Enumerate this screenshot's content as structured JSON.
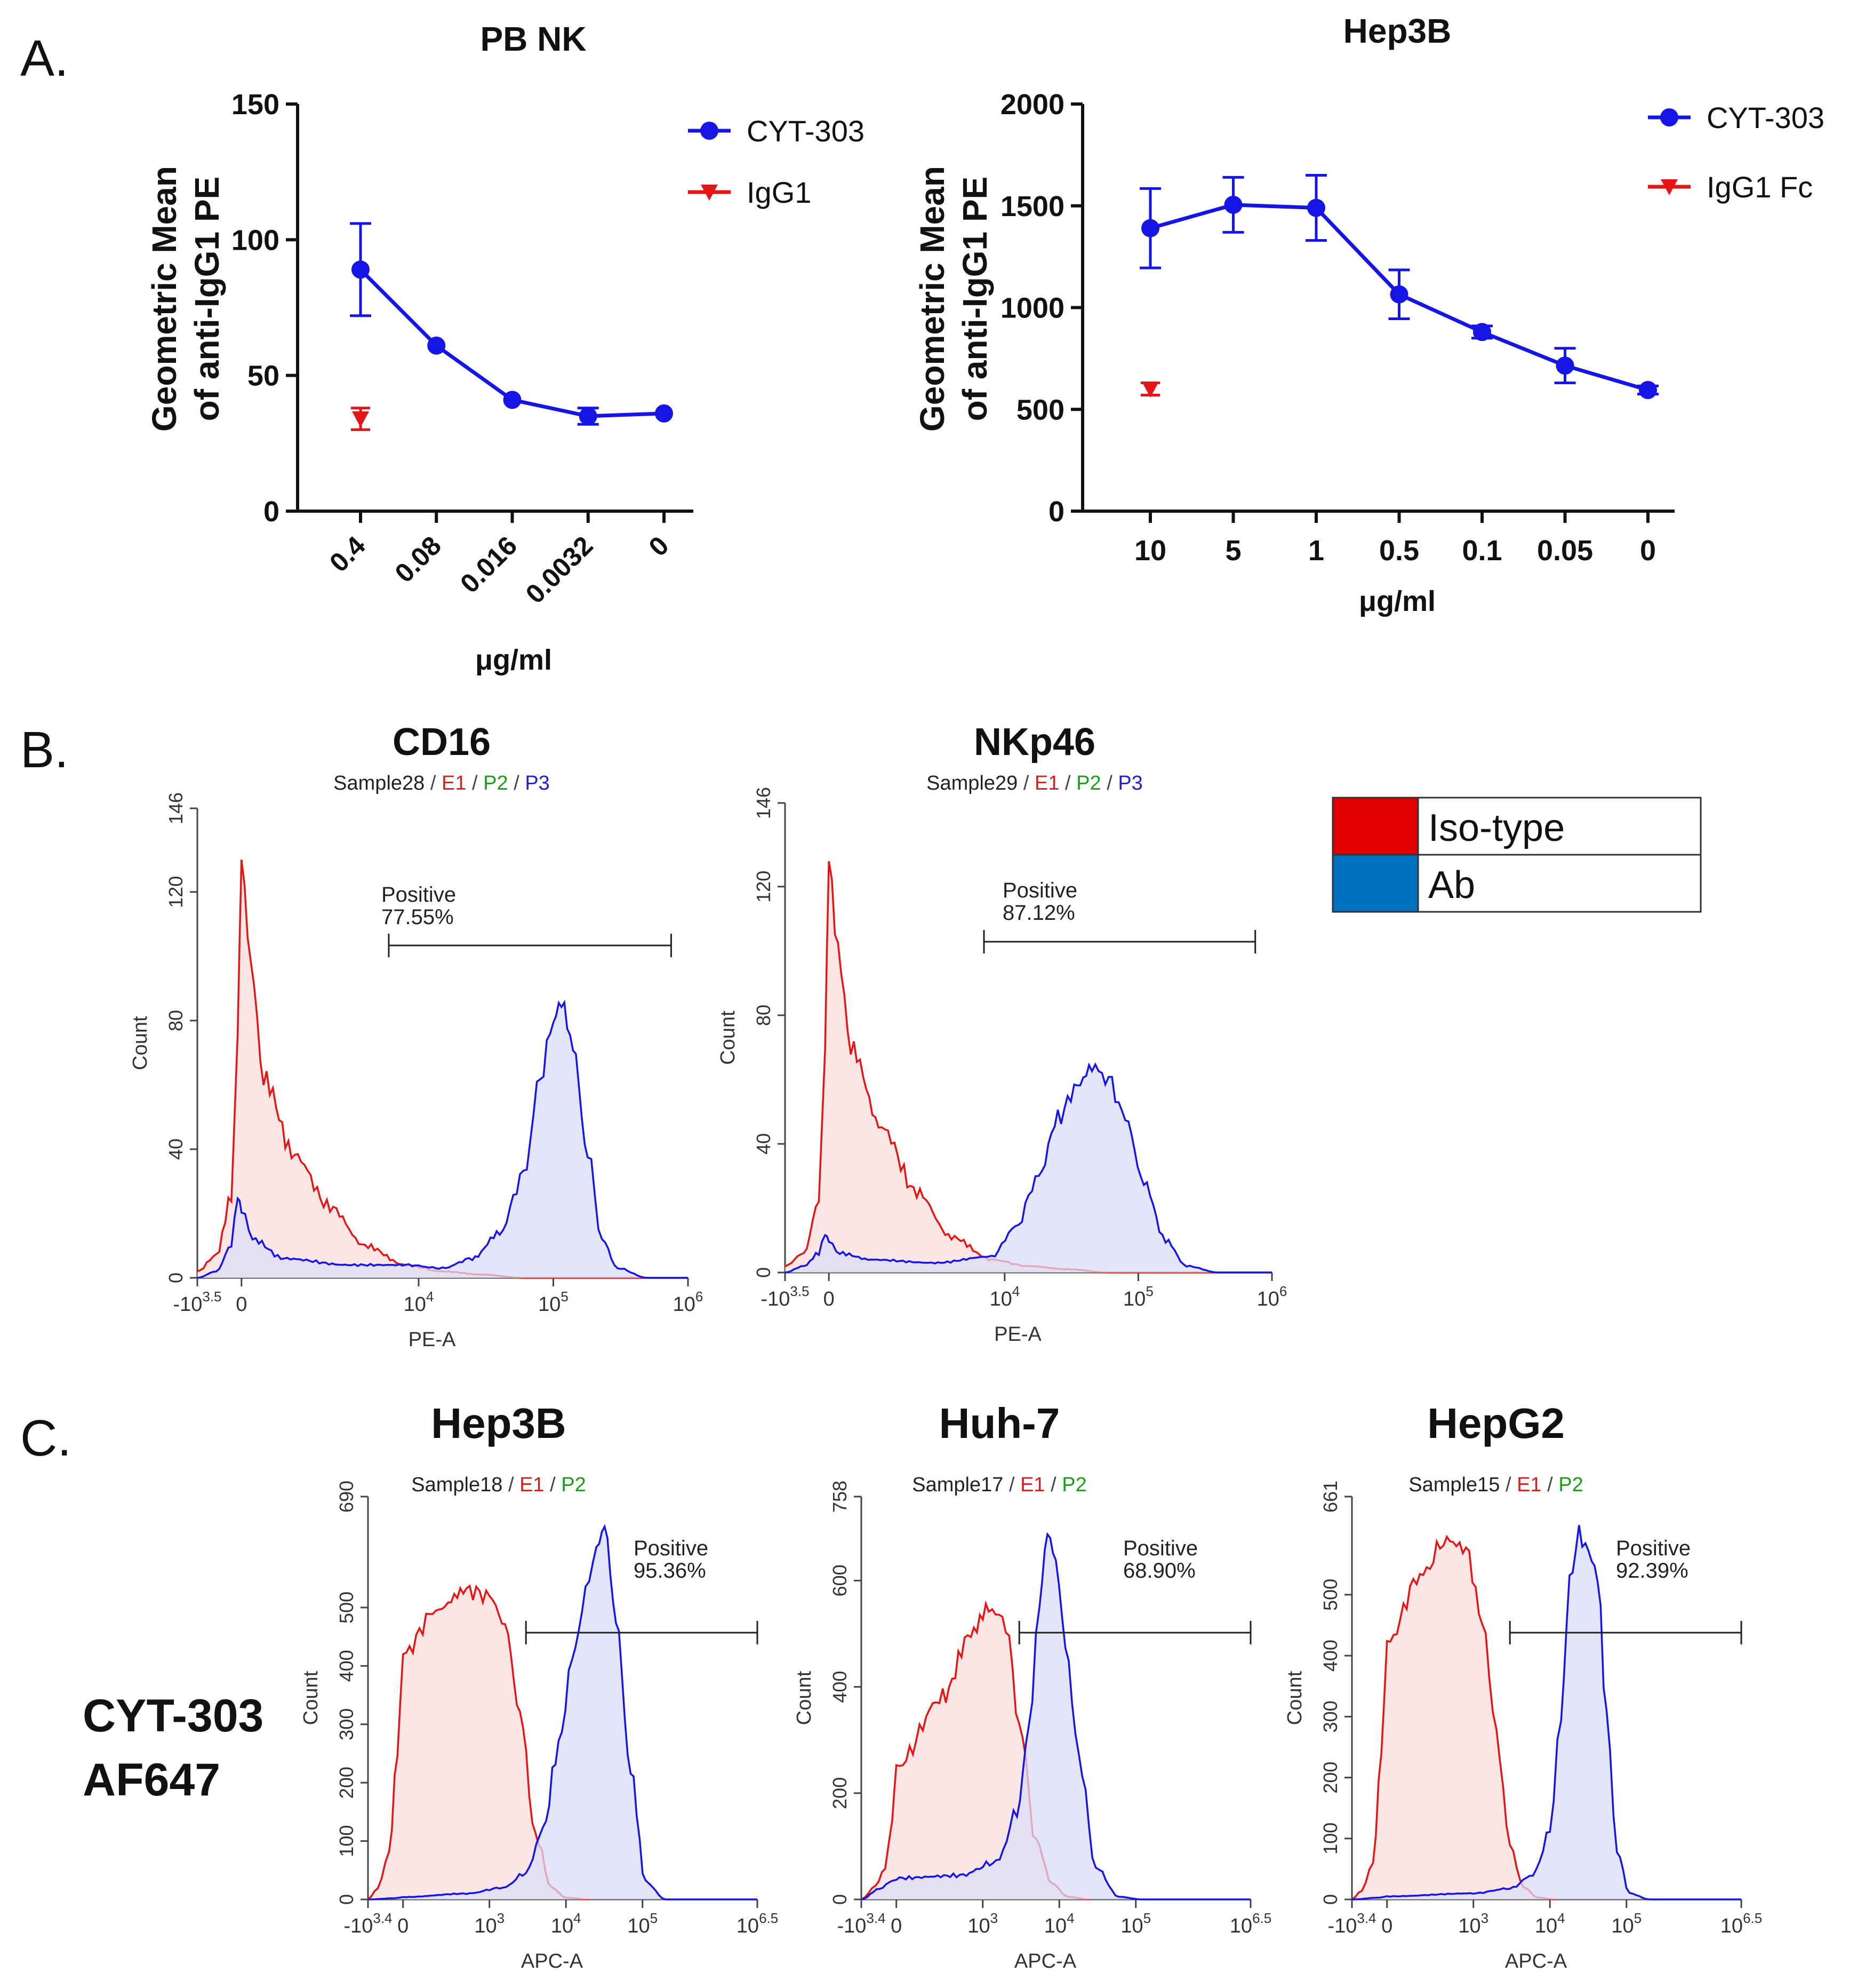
{
  "panels": {
    "a": "A.",
    "b": "B.",
    "c": "C."
  },
  "colors": {
    "cyt303": "#1515e6",
    "igg1": "#e61515",
    "iso_fill": "#f9dede",
    "ab_fill": "#dcdcf7",
    "legend_red": "#e00000",
    "legend_blue": "#0070c0"
  },
  "legend_b": {
    "iso": "Iso-type",
    "ab": "Ab"
  },
  "row_c_label": {
    "line1": "CYT-303",
    "line2": "AF647"
  },
  "chart_data": [
    {
      "id": "pbnk",
      "type": "line",
      "title": "PB NK",
      "ylabel": [
        "Geometric Mean",
        "of anti-IgG1 PE"
      ],
      "xlabel": "μg/ml",
      "ylim": [
        0,
        150
      ],
      "yticks": [
        0,
        50,
        100,
        150
      ],
      "categories": [
        "0.4",
        "0.08",
        "0.016",
        "0.0032",
        "0"
      ],
      "series": [
        {
          "name": "CYT-303",
          "marker": "circle",
          "values": [
            89,
            61,
            41,
            35,
            36
          ],
          "errors": [
            17,
            0,
            0,
            3,
            0
          ]
        },
        {
          "name": "IgG1",
          "marker": "triangle-down",
          "points": [
            {
              "index": 0,
              "value": 34,
              "error": 4
            }
          ]
        }
      ]
    },
    {
      "id": "hep3b_bind",
      "type": "line",
      "title": "Hep3B",
      "ylabel": [
        "Geometric Mean",
        "of anti-IgG1 PE"
      ],
      "xlabel": "μg/ml",
      "ylim": [
        0,
        2000
      ],
      "yticks": [
        0,
        500,
        1000,
        1500,
        2000
      ],
      "categories": [
        "10",
        "5",
        "1",
        "0.5",
        "0.1",
        "0.05",
        "0"
      ],
      "series": [
        {
          "name": "CYT-303",
          "marker": "circle",
          "values": [
            1390,
            1505,
            1490,
            1065,
            880,
            715,
            595
          ],
          "errors": [
            195,
            135,
            160,
            120,
            30,
            85,
            20
          ]
        },
        {
          "name": "IgG1 Fc",
          "marker": "triangle-down",
          "points": [
            {
              "index": 0,
              "value": 600,
              "error": 30
            }
          ]
        }
      ]
    },
    {
      "id": "cd16",
      "type": "area",
      "title": "CD16",
      "subtitle": {
        "sample": "Sample28",
        "sep": " / ",
        "e1": "E1",
        "p2": "P2",
        "p3": "P3"
      },
      "xlabel": "PE-A",
      "ylabel": "Count",
      "ylim": [
        0,
        146
      ],
      "yticks": [
        "0",
        "40",
        "80",
        "120",
        "146"
      ],
      "yticks_values": [
        0,
        40,
        80,
        120,
        146
      ],
      "xticks": [
        {
          "base": "-10",
          "exp": "3.5",
          "pos": -3500
        },
        {
          "base": "0",
          "exp": "",
          "pos": 0
        },
        {
          "base": "10",
          "exp": "4",
          "pos": 10000
        },
        {
          "base": "10",
          "exp": "5",
          "pos": 100000
        },
        {
          "base": "10",
          "exp": "6",
          "pos": 1000000
        }
      ],
      "gate": {
        "label": "Positive",
        "value": "77.55%",
        "from": 6000,
        "to": 750000
      },
      "series": [
        {
          "name": "Iso-type",
          "color": "red",
          "x": [
            -3500,
            -2000,
            -800,
            -300,
            0,
            250,
            600,
            1200,
            2200,
            4000,
            8000,
            15000,
            30000,
            60000,
            120000,
            250000,
            500000,
            1000000
          ],
          "y": [
            2,
            7,
            25,
            75,
            130,
            98,
            62,
            38,
            22,
            10,
            4,
            2,
            1,
            0,
            0,
            0,
            0,
            0
          ]
        },
        {
          "name": "Ab",
          "color": "blue",
          "x": [
            -3500,
            -2000,
            -800,
            -300,
            0,
            300,
            1000,
            3000,
            8000,
            15000,
            25000,
            40000,
            60000,
            80000,
            100000,
            115000,
            140000,
            180000,
            230000,
            300000,
            500000,
            1000000
          ],
          "y": [
            0,
            2,
            10,
            26,
            22,
            12,
            6,
            4,
            4,
            3,
            6,
            14,
            32,
            62,
            80,
            86,
            72,
            38,
            12,
            3,
            0,
            0
          ]
        }
      ]
    },
    {
      "id": "nkp46",
      "type": "area",
      "title": "NKp46",
      "subtitle": {
        "sample": "Sample29",
        "sep": " / ",
        "e1": "E1",
        "p2": "P2",
        "p3": "P3"
      },
      "xlabel": "PE-A",
      "ylabel": "Count",
      "ylim": [
        0,
        146
      ],
      "yticks": [
        "0",
        "40",
        "80",
        "120",
        "146"
      ],
      "yticks_values": [
        0,
        40,
        80,
        120,
        146
      ],
      "xticks": [
        {
          "base": "-10",
          "exp": "3.5",
          "pos": -3500
        },
        {
          "base": "0",
          "exp": "",
          "pos": 0
        },
        {
          "base": "10",
          "exp": "4",
          "pos": 10000
        },
        {
          "base": "10",
          "exp": "5",
          "pos": 100000
        },
        {
          "base": "10",
          "exp": "6",
          "pos": 1000000
        }
      ],
      "gate": {
        "label": "Positive",
        "value": "87.12%",
        "from": 7000,
        "to": 750000
      },
      "series": [
        {
          "name": "Iso-type",
          "color": "red",
          "x": [
            -3500,
            -2000,
            -800,
            -300,
            0,
            250,
            600,
            1200,
            2200,
            4000,
            8000,
            15000,
            30000,
            60000,
            120000,
            250000,
            500000,
            1000000
          ],
          "y": [
            2,
            6,
            22,
            70,
            128,
            100,
            70,
            45,
            25,
            11,
            4,
            2,
            1,
            0,
            0,
            0,
            0,
            0
          ]
        },
        {
          "name": "Ab",
          "color": "blue",
          "x": [
            -3500,
            -2000,
            -800,
            -300,
            0,
            300,
            1000,
            3000,
            8000,
            12000,
            18000,
            25000,
            35000,
            45000,
            60000,
            80000,
            110000,
            160000,
            230000,
            400000,
            1000000
          ],
          "y": [
            0,
            2,
            6,
            12,
            10,
            6,
            4,
            3,
            5,
            14,
            30,
            48,
            58,
            64,
            60,
            48,
            28,
            10,
            2,
            0,
            0
          ]
        }
      ]
    },
    {
      "id": "hep3b_flow",
      "type": "area",
      "title": "Hep3B",
      "subtitle": {
        "sample": "Sample18",
        "sep": " / ",
        "e1": "E1",
        "p2": "P2"
      },
      "xlabel": "APC-A",
      "ylabel": "Count",
      "ylim": [
        0,
        690
      ],
      "yticks": [
        "0",
        "100",
        "200",
        "300",
        "400",
        "500",
        "690"
      ],
      "yticks_values": [
        0,
        100,
        200,
        300,
        400,
        500,
        690
      ],
      "xticks": [
        {
          "base": "-10",
          "exp": "3.4",
          "pos": -2512
        },
        {
          "base": "0",
          "exp": "",
          "pos": 0
        },
        {
          "base": "10",
          "exp": "3",
          "pos": 1000
        },
        {
          "base": "10",
          "exp": "4",
          "pos": 10000
        },
        {
          "base": "10",
          "exp": "5",
          "pos": 100000
        },
        {
          "base": "10",
          "exp": "6.5",
          "pos": 3162278
        }
      ],
      "gate": {
        "label": "Positive",
        "value": "95.36%",
        "from": 3000,
        "to": 3162278
      },
      "series": [
        {
          "name": "Iso-type",
          "color": "red",
          "x": [
            -2512,
            -1800,
            -1000,
            -400,
            0,
            200,
            500,
            1000,
            1600,
            2500,
            4000,
            6500,
            10000,
            20000
          ],
          "y": [
            0,
            20,
            80,
            250,
            420,
            495,
            530,
            520,
            470,
            320,
            110,
            20,
            3,
            0
          ]
        },
        {
          "name": "Ab",
          "color": "blue",
          "x": [
            -2512,
            -600,
            0,
            500,
            1500,
            3000,
            5000,
            8000,
            12000,
            18000,
            25000,
            32000,
            45000,
            70000,
            110000,
            200000,
            3162278
          ],
          "y": [
            0,
            2,
            4,
            10,
            20,
            45,
            120,
            260,
            410,
            520,
            600,
            640,
            480,
            220,
            30,
            0,
            0
          ]
        }
      ]
    },
    {
      "id": "huh7_flow",
      "type": "area",
      "title": "Huh-7",
      "subtitle": {
        "sample": "Sample17",
        "sep": " / ",
        "e1": "E1",
        "p2": "P2"
      },
      "xlabel": "APC-A",
      "ylabel": "Count",
      "ylim": [
        0,
        758
      ],
      "yticks": [
        "0",
        "200",
        "400",
        "600",
        "758"
      ],
      "yticks_values": [
        0,
        200,
        400,
        600,
        758
      ],
      "xticks": [
        {
          "base": "-10",
          "exp": "3.4",
          "pos": -2512
        },
        {
          "base": "0",
          "exp": "",
          "pos": 0
        },
        {
          "base": "10",
          "exp": "3",
          "pos": 1000
        },
        {
          "base": "10",
          "exp": "4",
          "pos": 10000
        },
        {
          "base": "10",
          "exp": "5",
          "pos": 100000
        },
        {
          "base": "10",
          "exp": "6.5",
          "pos": 3162278
        }
      ],
      "gate": {
        "label": "Positive",
        "value": "68.90%",
        "from": 3000,
        "to": 3162278
      },
      "series": [
        {
          "name": "Iso-type",
          "color": "red",
          "x": [
            -2512,
            -1500,
            -800,
            -300,
            0,
            300,
            700,
            1200,
            2000,
            3000,
            5000,
            8000,
            13000,
            25000
          ],
          "y": [
            0,
            25,
            60,
            140,
            250,
            380,
            500,
            550,
            520,
            330,
            110,
            30,
            5,
            0
          ]
        },
        {
          "name": "Ab",
          "color": "blue",
          "x": [
            -2512,
            -1200,
            -300,
            0,
            500,
            1500,
            2800,
            4000,
            5500,
            7000,
            9000,
            12000,
            18000,
            30000,
            60000,
            120000,
            3162278
          ],
          "y": [
            0,
            20,
            35,
            40,
            45,
            70,
            160,
            320,
            560,
            690,
            640,
            480,
            270,
            60,
            5,
            0,
            0
          ]
        }
      ]
    },
    {
      "id": "hepg2_flow",
      "type": "area",
      "title": "HepG2",
      "subtitle": {
        "sample": "Sample15",
        "sep": " / ",
        "e1": "E1",
        "p2": "P2"
      },
      "xlabel": "APC-A",
      "ylabel": "Count",
      "ylim": [
        0,
        661
      ],
      "yticks": [
        "0",
        "100",
        "200",
        "300",
        "400",
        "500",
        "661"
      ],
      "yticks_values": [
        0,
        100,
        200,
        300,
        400,
        500,
        661
      ],
      "xticks": [
        {
          "base": "-10",
          "exp": "3.4",
          "pos": -2512
        },
        {
          "base": "0",
          "exp": "",
          "pos": 0
        },
        {
          "base": "10",
          "exp": "3",
          "pos": 1000
        },
        {
          "base": "10",
          "exp": "4",
          "pos": 10000
        },
        {
          "base": "10",
          "exp": "5",
          "pos": 100000
        },
        {
          "base": "10",
          "exp": "6.5",
          "pos": 3162278
        }
      ],
      "gate": {
        "label": "Positive",
        "value": "92.39%",
        "from": 3000,
        "to": 3162278
      },
      "series": [
        {
          "name": "Iso-type",
          "color": "red",
          "x": [
            -2512,
            -1800,
            -1000,
            -400,
            0,
            200,
            450,
            800,
            1300,
            2000,
            3000,
            4500,
            7000,
            12000
          ],
          "y": [
            0,
            15,
            60,
            240,
            420,
            530,
            590,
            575,
            460,
            270,
            90,
            20,
            3,
            0
          ]
        },
        {
          "name": "Ab",
          "color": "blue",
          "x": [
            -2512,
            -500,
            0,
            1000,
            3000,
            6000,
            10000,
            14000,
            18000,
            24000,
            32000,
            42000,
            55000,
            75000,
            110000,
            200000,
            3162278
          ],
          "y": [
            0,
            3,
            5,
            10,
            18,
            40,
            110,
            300,
            520,
            600,
            570,
            530,
            300,
            80,
            10,
            0,
            0
          ]
        }
      ]
    }
  ]
}
